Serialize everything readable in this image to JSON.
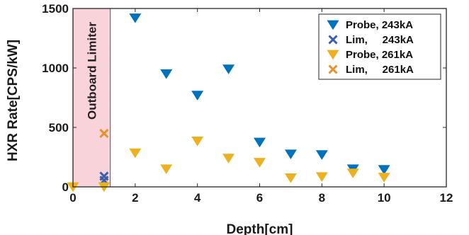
{
  "chart_data": {
    "type": "scatter",
    "xlabel": "Depth[cm]",
    "ylabel": "HXR Rate[CPS/kW]",
    "xlim": [
      0,
      12
    ],
    "ylim": [
      0,
      1500
    ],
    "xticks": [
      "0",
      "2",
      "4",
      "6",
      "8",
      "10",
      "12"
    ],
    "yticks": [
      "0",
      "500",
      "1000",
      "1500"
    ],
    "grid": false,
    "legend_position": "top-right",
    "shaded_region": {
      "x": [
        0,
        1.2
      ],
      "label": "Outboard Limiter",
      "color": "#f4b6bf"
    },
    "series": [
      {
        "name": "Probe, 243kA",
        "marker": "triangle-down",
        "color": "#0072BD",
        "x": [
          2,
          3,
          4,
          5,
          6,
          7,
          8,
          9,
          10
        ],
        "y": [
          1420,
          950,
          770,
          990,
          375,
          275,
          270,
          150,
          145
        ]
      },
      {
        "name": "Lim,     243kA",
        "marker": "x",
        "color": "#3a5fa8",
        "x": [
          1,
          1
        ],
        "y": [
          90,
          55
        ]
      },
      {
        "name": "Probe, 261kA",
        "marker": "triangle-down",
        "color": "#EDB120",
        "x": [
          0,
          1,
          2,
          3,
          4,
          5,
          6,
          7,
          8,
          9,
          10
        ],
        "y": [
          0,
          0,
          285,
          150,
          385,
          240,
          205,
          75,
          85,
          115,
          80
        ]
      },
      {
        "name": "Lim,     261kA",
        "marker": "x",
        "color": "#E8902A",
        "x": [
          1
        ],
        "y": [
          450
        ]
      }
    ]
  }
}
